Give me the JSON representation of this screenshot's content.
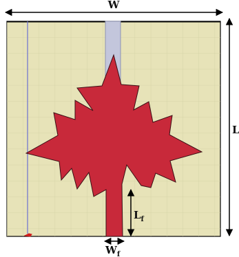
{
  "colors": {
    "background": "#ffffff",
    "substrate": "#e7e3b8",
    "grid_line": "#d2d0a4",
    "substrate_border": "#000000",
    "patch": "#c8293a",
    "patch_outline": "#3a1015",
    "ground_strip": "#c3c6dc",
    "ground_strip_edge": "#8d93b2",
    "ruler_line": "#6c70d0",
    "port_marker": "#d21d1d",
    "dimension_arrow": "#000000"
  },
  "labels": {
    "width": "W",
    "length": "L",
    "feed_length_base": "L",
    "feed_length_sub": "f",
    "feed_width_base": "W",
    "feed_width_sub": "f"
  },
  "icons": {
    "patch_shape": "maple-leaf",
    "port": "port-marker"
  }
}
